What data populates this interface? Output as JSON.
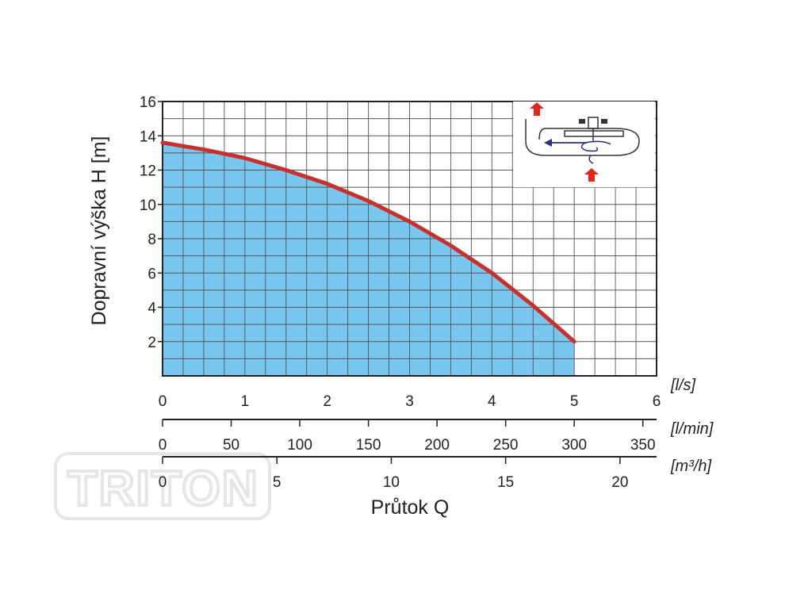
{
  "watermark": "TRITON",
  "chart_data": {
    "type": "area",
    "ylabel": "Dopravní výška H [m]",
    "xlabel": "Průtok Q",
    "ylim": [
      0,
      16
    ],
    "yticks": [
      2,
      4,
      6,
      8,
      10,
      12,
      14,
      16
    ],
    "grid": true,
    "fill_color": "#79c6ef",
    "line_color": "#c8302c",
    "axes": [
      {
        "unit": "[l/s]",
        "range": [
          0,
          6
        ],
        "ticks": [
          0,
          1,
          2,
          3,
          4,
          5,
          6
        ]
      },
      {
        "unit": "[l/min]",
        "range": [
          0,
          360
        ],
        "ticks": [
          0,
          50,
          100,
          150,
          200,
          250,
          300,
          350
        ]
      },
      {
        "unit": "[m³/h]",
        "range": [
          0,
          21.6
        ],
        "ticks": [
          0,
          5,
          10,
          15,
          20
        ]
      }
    ],
    "series": [
      {
        "x_unit": "l/s",
        "x": [
          0,
          0.5,
          1,
          1.5,
          2,
          2.5,
          3,
          3.5,
          4,
          4.5,
          5
        ],
        "y": [
          13.6,
          13.2,
          12.7,
          12.0,
          11.2,
          10.2,
          9.0,
          7.6,
          6.0,
          4.1,
          2.0
        ]
      }
    ],
    "inset_icon": "pump-flow-diagram-icon"
  }
}
